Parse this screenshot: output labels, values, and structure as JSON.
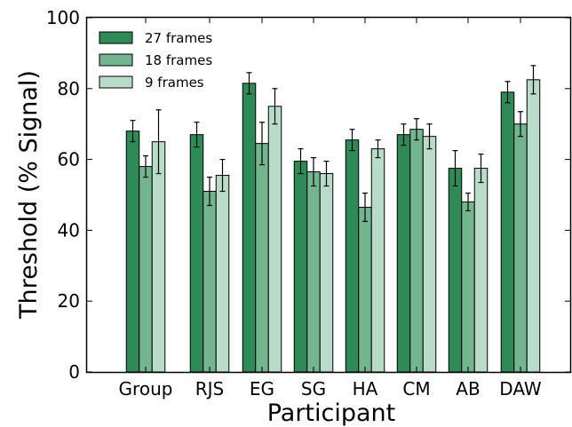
{
  "chart_data": {
    "type": "bar",
    "xlabel": "Participant",
    "ylabel": "Threshold (% Signal)",
    "ylim": [
      0,
      100
    ],
    "yticks": [
      0,
      20,
      40,
      60,
      80,
      100
    ],
    "grid": false,
    "legend_position": "top-left",
    "categories": [
      "Group",
      "RJS",
      "EG",
      "SG",
      "HA",
      "CM",
      "AB",
      "DAW"
    ],
    "series": [
      {
        "name": "27 frames",
        "color": "#2e8b57",
        "values": [
          68,
          67,
          81.5,
          59.5,
          65.5,
          67,
          57.5,
          79
        ],
        "errors": [
          3,
          3.5,
          3,
          3.5,
          3,
          3,
          5,
          3
        ]
      },
      {
        "name": "18 frames",
        "color": "#73b58f",
        "values": [
          58,
          51,
          64.5,
          56.5,
          46.5,
          68.5,
          48,
          70
        ],
        "errors": [
          3,
          4,
          6,
          4,
          4,
          3,
          2.5,
          3.5
        ]
      },
      {
        "name": "9 frames",
        "color": "#b8dcc8",
        "values": [
          65,
          55.5,
          75,
          56,
          63,
          66.5,
          57.5,
          82.5
        ],
        "errors": [
          9,
          4.5,
          5,
          3.5,
          2.5,
          3.5,
          4,
          4
        ]
      }
    ]
  }
}
